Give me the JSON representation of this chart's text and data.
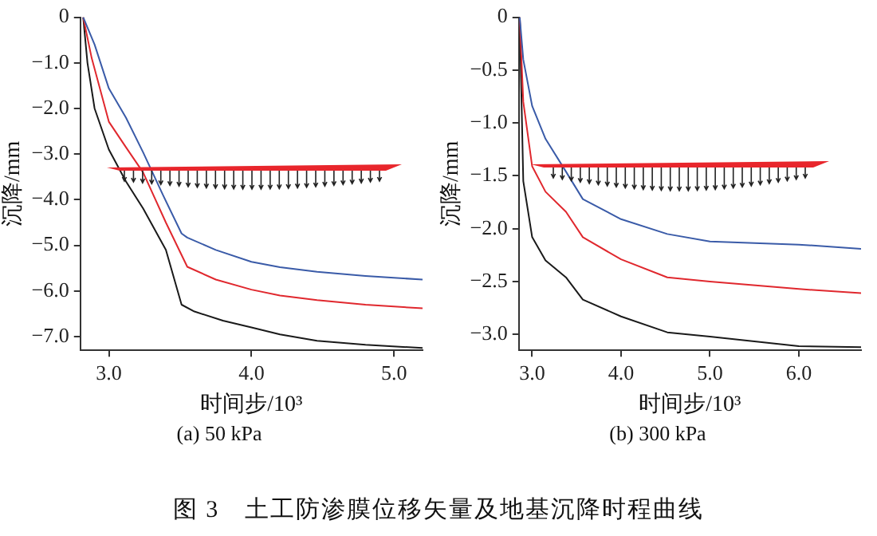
{
  "chart_data": [
    {
      "type": "line",
      "title": "(a) 50 kPa",
      "xlabel": "时间步/10³",
      "ylabel": "沉降/mm",
      "xlim": [
        2.8,
        5.2
      ],
      "ylim": [
        -7.3,
        0
      ],
      "xticks": [
        {
          "value": 3,
          "label": "3.0"
        },
        {
          "value": 4,
          "label": "4.0"
        },
        {
          "value": 5,
          "label": "5.0"
        }
      ],
      "yticks": [
        0,
        {
          "value": -1,
          "label": "−1.0"
        },
        {
          "value": -2,
          "label": "−2.0"
        },
        {
          "value": -3,
          "label": "−3.0"
        },
        {
          "value": -4,
          "label": "−4.0"
        },
        {
          "value": -5,
          "label": "−5.0"
        },
        {
          "value": -6,
          "label": "−6.0"
        },
        {
          "value": -7,
          "label": "−7.0"
        }
      ],
      "grid": false,
      "legend": false,
      "marker": "none",
      "line_style": "solid",
      "series": [
        {
          "color": "#3a5ba8",
          "x": [
            2.82,
            2.9,
            3.0,
            3.12,
            3.24,
            3.38,
            3.51,
            3.55,
            3.75,
            4.0,
            4.2,
            4.46,
            4.8,
            5.2
          ],
          "values": [
            0,
            -0.6,
            -1.56,
            -2.2,
            -2.96,
            -3.9,
            -4.74,
            -4.83,
            -5.1,
            -5.36,
            -5.48,
            -5.58,
            -5.67,
            -5.75
          ]
        },
        {
          "color": "#e0282e",
          "x": [
            2.82,
            2.88,
            3.0,
            3.12,
            3.24,
            3.4,
            3.55,
            3.75,
            4.0,
            4.2,
            4.46,
            4.8,
            5.2
          ],
          "values": [
            0,
            -0.9,
            -2.29,
            -2.85,
            -3.4,
            -4.5,
            -5.47,
            -5.75,
            -5.97,
            -6.1,
            -6.2,
            -6.3,
            -6.38
          ]
        },
        {
          "color": "#1a1a1a",
          "x": [
            2.82,
            2.85,
            2.9,
            3.0,
            3.12,
            3.24,
            3.4,
            3.51,
            3.6,
            3.8,
            4.0,
            4.2,
            4.46,
            4.8,
            5.2
          ],
          "values": [
            0,
            -1.0,
            -2.0,
            -2.9,
            -3.6,
            -4.19,
            -5.1,
            -6.3,
            -6.45,
            -6.65,
            -6.8,
            -6.95,
            -7.09,
            -7.18,
            -7.25
          ]
        }
      ]
    },
    {
      "type": "line",
      "title": "(b) 300 kPa",
      "xlabel": "时间步/10³",
      "ylabel": "沉降/mm",
      "xlim": [
        2.85,
        6.7
      ],
      "ylim": [
        -3.15,
        0
      ],
      "xticks": [
        {
          "value": 3,
          "label": "3.0"
        },
        {
          "value": 4,
          "label": "4.0"
        },
        {
          "value": 5,
          "label": "5.0"
        },
        {
          "value": 6,
          "label": "6.0"
        }
      ],
      "yticks": [
        0,
        {
          "value": -0.5,
          "label": "−0.5"
        },
        {
          "value": -1,
          "label": "−1.0"
        },
        {
          "value": -1.5,
          "label": "−1.5"
        },
        {
          "value": -2,
          "label": "−2.0"
        },
        {
          "value": -2.5,
          "label": "−2.5"
        },
        {
          "value": -3,
          "label": "−3.0"
        }
      ],
      "grid": false,
      "legend": false,
      "marker": "none",
      "line_style": "solid",
      "annotations": [
        "图 3　土工防渗膜位移矢量及地基沉降时程曲线"
      ],
      "series": [
        {
          "color": "#3a5ba8",
          "x": [
            2.86,
            2.9,
            3.0,
            3.15,
            3.38,
            3.57,
            4.0,
            4.52,
            5.0,
            6.0,
            6.7
          ],
          "values": [
            0,
            -0.4,
            -0.84,
            -1.15,
            -1.46,
            -1.72,
            -1.91,
            -2.05,
            -2.12,
            -2.15,
            -2.19
          ]
        },
        {
          "color": "#e0282e",
          "x": [
            2.86,
            2.9,
            3.0,
            3.15,
            3.38,
            3.57,
            4.0,
            4.52,
            5.0,
            6.0,
            6.7
          ],
          "values": [
            0,
            -0.8,
            -1.41,
            -1.65,
            -1.84,
            -2.08,
            -2.29,
            -2.46,
            -2.5,
            -2.57,
            -2.61
          ]
        },
        {
          "color": "#1a1a1a",
          "x": [
            2.86,
            2.9,
            3.0,
            3.15,
            3.38,
            3.57,
            4.0,
            4.52,
            5.0,
            6.0,
            6.7
          ],
          "values": [
            0,
            -1.55,
            -2.08,
            -2.3,
            -2.46,
            -2.67,
            -2.83,
            -2.98,
            -3.02,
            -3.11,
            -3.12
          ]
        }
      ]
    }
  ]
}
